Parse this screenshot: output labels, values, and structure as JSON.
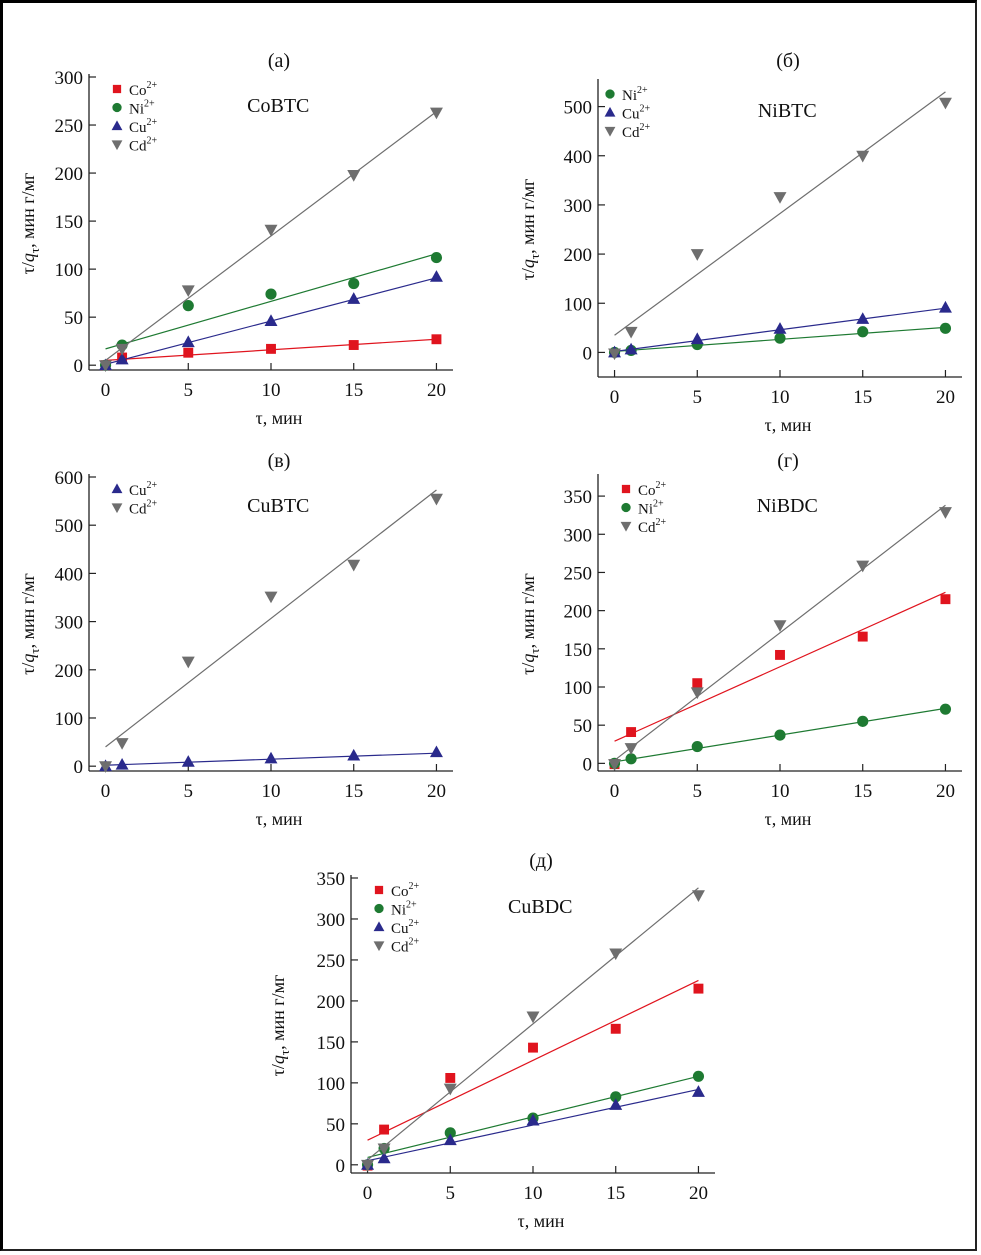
{
  "figure": {
    "colors": {
      "Co2+": "#e0141e",
      "Ni2+": "#1e7a32",
      "Cu2+": "#2a2a8c",
      "Cd2+": "#6e6e6e"
    },
    "markers": {
      "Co2+": "square",
      "Ni2+": "circle",
      "Cu2+": "triangle-up",
      "Cd2+": "triangle-down"
    }
  },
  "chart_data": [
    {
      "id": "a",
      "panel_label": "(а)",
      "type": "scatter",
      "title": "CoBTC",
      "xlabel": "τ, мин",
      "ylabel": "τ/qτ, мин г/мг",
      "xlim": [
        -1,
        21
      ],
      "ylim": [
        -5,
        300
      ],
      "xticks": [
        0,
        5,
        10,
        15,
        20
      ],
      "yticks": [
        0,
        50,
        100,
        150,
        200,
        250,
        300
      ],
      "grid": false,
      "legend_position": "top-left",
      "x": [
        0,
        1,
        5,
        10,
        15,
        20
      ],
      "series": [
        {
          "name": "Co",
          "charge": "2+",
          "key": "Co2+",
          "values": [
            0,
            8,
            13,
            17,
            21,
            27
          ],
          "fit": [
            5,
            27
          ]
        },
        {
          "name": "Ni",
          "charge": "2+",
          "key": "Ni2+",
          "values": [
            0,
            21,
            62,
            74,
            85,
            112
          ],
          "fit": [
            17,
            116
          ]
        },
        {
          "name": "Cu",
          "charge": "2+",
          "key": "Cu2+",
          "values": [
            0,
            6,
            24,
            46,
            69,
            92
          ],
          "fit": [
            1,
            91
          ]
        },
        {
          "name": "Cd",
          "charge": "2+",
          "key": "Cd2+",
          "values": [
            0,
            17,
            78,
            141,
            198,
            263
          ],
          "fit": [
            5,
            264
          ]
        }
      ]
    },
    {
      "id": "b",
      "panel_label": "(б)",
      "type": "scatter",
      "title": "NiBTC",
      "xlabel": "τ, мин",
      "ylabel": "τ/qτ, мин г/мг",
      "xlim": [
        -1,
        21
      ],
      "ylim": [
        -50,
        550
      ],
      "xticks": [
        0,
        5,
        10,
        15,
        20
      ],
      "yticks": [
        0,
        100,
        200,
        300,
        400,
        500
      ],
      "grid": false,
      "legend_position": "top-left",
      "x": [
        0,
        1,
        5,
        10,
        15,
        20
      ],
      "series": [
        {
          "name": "Ni",
          "charge": "2+",
          "key": "Ni2+",
          "values": [
            0,
            4,
            16,
            29,
            42,
            49
          ],
          "fit": [
            2,
            51
          ]
        },
        {
          "name": "Cu",
          "charge": "2+",
          "key": "Cu2+",
          "values": [
            0,
            6,
            27,
            48,
            68,
            91
          ],
          "fit": [
            2,
            90
          ]
        },
        {
          "name": "Cd",
          "charge": "2+",
          "key": "Cd2+",
          "values": [
            -2,
            42,
            200,
            316,
            400,
            508
          ],
          "fit": [
            35,
            530
          ]
        }
      ]
    },
    {
      "id": "c",
      "panel_label": "(в)",
      "type": "scatter",
      "title": "CuBTC",
      "xlabel": "τ, мин",
      "ylabel": "τ/qτ, мин г/мг",
      "xlim": [
        -1,
        21
      ],
      "ylim": [
        -10,
        600
      ],
      "xticks": [
        0,
        5,
        10,
        15,
        20
      ],
      "yticks": [
        0,
        100,
        200,
        300,
        400,
        500,
        600
      ],
      "grid": false,
      "legend_position": "top-left",
      "x": [
        0,
        1,
        5,
        10,
        15,
        20
      ],
      "series": [
        {
          "name": "Cu",
          "charge": "2+",
          "key": "Cu2+",
          "values": [
            0,
            3,
            9,
            16,
            22,
            29
          ],
          "fit": [
            2,
            27
          ]
        },
        {
          "name": "Cd",
          "charge": "2+",
          "key": "Cd2+",
          "values": [
            0,
            48,
            217,
            352,
            418,
            555
          ],
          "fit": [
            40,
            573
          ]
        }
      ]
    },
    {
      "id": "d",
      "panel_label": "(г)",
      "type": "scatter",
      "title": "NiBDC",
      "xlabel": "τ, мин",
      "ylabel": "τ/qτ, мин г/мг",
      "xlim": [
        -1,
        21
      ],
      "ylim": [
        -10,
        375
      ],
      "xticks": [
        0,
        5,
        10,
        15,
        20
      ],
      "yticks": [
        0,
        50,
        100,
        150,
        200,
        250,
        300,
        350
      ],
      "grid": false,
      "legend_position": "top-left",
      "x": [
        0,
        1,
        5,
        10,
        15,
        20
      ],
      "series": [
        {
          "name": "Co",
          "charge": "2+",
          "key": "Co2+",
          "values": [
            -1,
            41,
            105,
            142,
            166,
            215
          ],
          "fit": [
            29,
            224
          ]
        },
        {
          "name": "Ni",
          "charge": "2+",
          "key": "Ni2+",
          "values": [
            0,
            6,
            22,
            37,
            55,
            71
          ],
          "fit": [
            2,
            72
          ]
        },
        {
          "name": "Cd",
          "charge": "2+",
          "key": "Cd2+",
          "values": [
            -1,
            20,
            93,
            181,
            259,
            329
          ],
          "fit": [
            4,
            338
          ]
        }
      ]
    },
    {
      "id": "e",
      "panel_label": "(д)",
      "type": "scatter",
      "title": "CuBDC",
      "xlabel": "τ, мин",
      "ylabel": "τ/qτ, мин г/мг",
      "xlim": [
        -1,
        21
      ],
      "ylim": [
        -10,
        350
      ],
      "xticks": [
        0,
        5,
        10,
        15,
        20
      ],
      "yticks": [
        0,
        50,
        100,
        150,
        200,
        250,
        300,
        350
      ],
      "grid": false,
      "legend_position": "top-left",
      "x": [
        0,
        1,
        5,
        10,
        15,
        20
      ],
      "series": [
        {
          "name": "Co",
          "charge": "2+",
          "key": "Co2+",
          "values": [
            -1,
            43,
            106,
            143,
            166,
            215
          ],
          "fit": [
            30,
            225
          ]
        },
        {
          "name": "Ni",
          "charge": "2+",
          "key": "Ni2+",
          "values": [
            0,
            20,
            39,
            57,
            83,
            108
          ],
          "fit": [
            9,
            108
          ]
        },
        {
          "name": "Cu",
          "charge": "2+",
          "key": "Cu2+",
          "values": [
            0,
            8,
            30,
            54,
            73,
            89
          ],
          "fit": [
            5,
            92
          ]
        },
        {
          "name": "Cd",
          "charge": "2+",
          "key": "Cd2+",
          "values": [
            0,
            20,
            93,
            181,
            258,
            329
          ],
          "fit": [
            6,
            338
          ]
        }
      ]
    }
  ]
}
